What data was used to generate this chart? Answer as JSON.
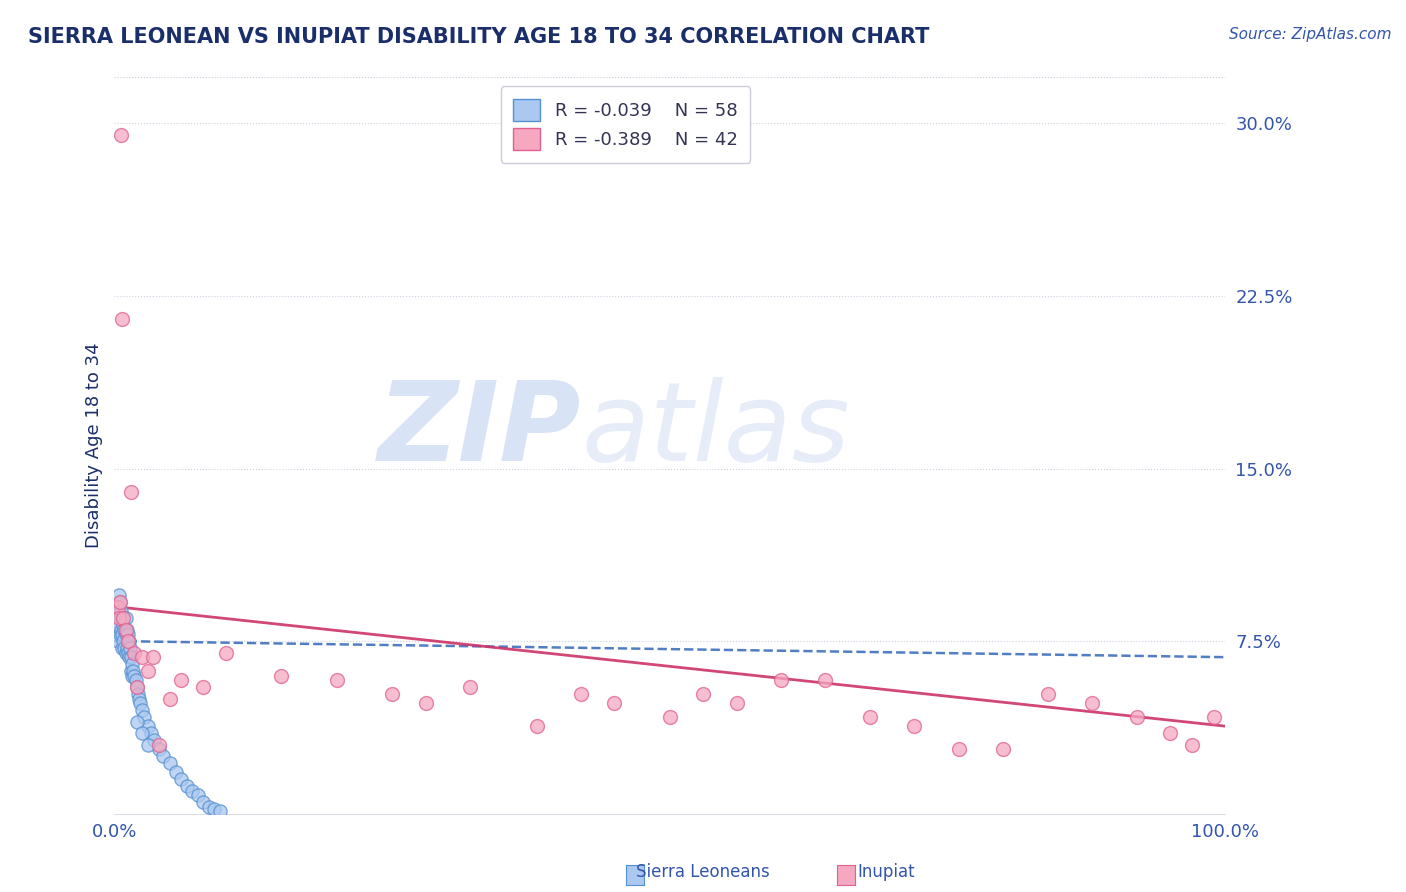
{
  "title": "SIERRA LEONEAN VS INUPIAT DISABILITY AGE 18 TO 34 CORRELATION CHART",
  "source_text": "Source: ZipAtlas.com",
  "ylabel": "Disability Age 18 to 34",
  "xlim": [
    0,
    1
  ],
  "ylim": [
    0,
    0.32
  ],
  "yticks": [
    0.075,
    0.15,
    0.225,
    0.3
  ],
  "ytick_labels": [
    "7.5%",
    "15.0%",
    "22.5%",
    "30.0%"
  ],
  "sierra_color": "#aac8f0",
  "sierra_edge": "#5590d0",
  "inupiat_color": "#f5a8c0",
  "inupiat_edge": "#e06090",
  "sierra_line_color": "#3366bb",
  "inupiat_line_color": "#cc3366",
  "title_color": "#1a2e6a",
  "axis_label_color": "#1a2e6a",
  "tick_color": "#3355aa",
  "source_color": "#3355aa",
  "background_color": "#ffffff",
  "watermark_color": "#d0ddf5",
  "grid_color": "#c8cce0",
  "sierra_x": [
    0.003,
    0.003,
    0.003,
    0.004,
    0.004,
    0.005,
    0.005,
    0.005,
    0.006,
    0.006,
    0.007,
    0.007,
    0.007,
    0.008,
    0.008,
    0.009,
    0.009,
    0.01,
    0.01,
    0.01,
    0.011,
    0.011,
    0.012,
    0.012,
    0.013,
    0.013,
    0.014,
    0.015,
    0.015,
    0.016,
    0.016,
    0.017,
    0.018,
    0.019,
    0.02,
    0.021,
    0.022,
    0.023,
    0.025,
    0.027,
    0.03,
    0.033,
    0.036,
    0.04,
    0.044,
    0.05,
    0.055,
    0.06,
    0.065,
    0.07,
    0.075,
    0.08,
    0.085,
    0.09,
    0.095,
    0.02,
    0.025,
    0.03
  ],
  "sierra_y": [
    0.09,
    0.082,
    0.075,
    0.095,
    0.088,
    0.092,
    0.085,
    0.078,
    0.088,
    0.08,
    0.085,
    0.078,
    0.072,
    0.082,
    0.075,
    0.08,
    0.072,
    0.085,
    0.078,
    0.07,
    0.08,
    0.072,
    0.078,
    0.07,
    0.075,
    0.068,
    0.072,
    0.068,
    0.062,
    0.065,
    0.06,
    0.062,
    0.06,
    0.058,
    0.055,
    0.052,
    0.05,
    0.048,
    0.045,
    0.042,
    0.038,
    0.035,
    0.032,
    0.028,
    0.025,
    0.022,
    0.018,
    0.015,
    0.012,
    0.01,
    0.008,
    0.005,
    0.003,
    0.002,
    0.001,
    0.04,
    0.035,
    0.03
  ],
  "inupiat_x": [
    0.003,
    0.004,
    0.005,
    0.006,
    0.007,
    0.008,
    0.01,
    0.012,
    0.015,
    0.018,
    0.02,
    0.025,
    0.03,
    0.035,
    0.04,
    0.05,
    0.06,
    0.08,
    0.1,
    0.15,
    0.2,
    0.25,
    0.28,
    0.32,
    0.38,
    0.42,
    0.45,
    0.5,
    0.53,
    0.56,
    0.6,
    0.64,
    0.68,
    0.72,
    0.76,
    0.8,
    0.84,
    0.88,
    0.92,
    0.95,
    0.97,
    0.99
  ],
  "inupiat_y": [
    0.09,
    0.085,
    0.092,
    0.295,
    0.215,
    0.085,
    0.08,
    0.075,
    0.14,
    0.07,
    0.055,
    0.068,
    0.062,
    0.068,
    0.03,
    0.05,
    0.058,
    0.055,
    0.07,
    0.06,
    0.058,
    0.052,
    0.048,
    0.055,
    0.038,
    0.052,
    0.048,
    0.042,
    0.052,
    0.048,
    0.058,
    0.058,
    0.042,
    0.038,
    0.028,
    0.028,
    0.052,
    0.048,
    0.042,
    0.035,
    0.03,
    0.042
  ],
  "sierra_trendline_x": [
    0.0,
    1.0
  ],
  "sierra_trendline_y": [
    0.075,
    0.068
  ],
  "inupiat_trendline_x": [
    0.0,
    1.0
  ],
  "inupiat_trendline_y": [
    0.09,
    0.038
  ]
}
